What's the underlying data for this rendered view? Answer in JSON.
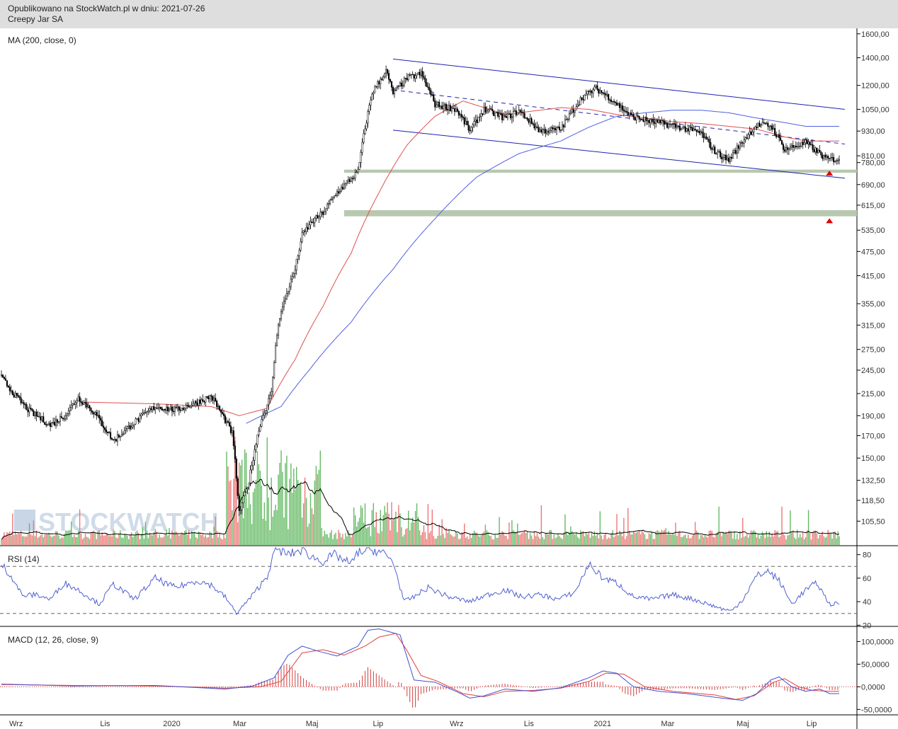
{
  "header": {
    "published": "Opublikowano na StockWatch.pl w dniu: 2021-07-26",
    "instrument": "Creepy Jar SA"
  },
  "watermark": "STOCKWATCH",
  "colors": {
    "ma_red": "#e05050",
    "ma_blue": "#5060e0",
    "channel": "#2020b0",
    "rsi": "#5060d0",
    "support_band": "#b8c8b0",
    "vol_up": "#66bb66",
    "vol_down": "#ee7777",
    "marker": "#e00000"
  },
  "chart_data": [
    {
      "type": "candlestick",
      "panel": "price",
      "indicator_label": "MA (200, close, 0)",
      "y_scale": "log",
      "ylim": [
        92,
        1650
      ],
      "y_ticks": [
        "1600,00",
        "1400,00",
        "1200,00",
        "1050,00",
        "930,00",
        "810,00",
        "780,00",
        "690,00",
        "615,00",
        "535,00",
        "475,00",
        "415,00",
        "355,00",
        "315,00",
        "275,00",
        "245,00",
        "215,00",
        "190,00",
        "170,00",
        "150,00",
        "132,50",
        "118,50",
        "105,50"
      ],
      "x_ticks": [
        "Wrz",
        "Lis",
        "2020",
        "Mar",
        "Maj",
        "Lip",
        "Wrz",
        "Lis",
        "2021",
        "Mar",
        "Maj",
        "Lip"
      ],
      "close_anchors": [
        [
          0,
          235
        ],
        [
          10,
          212
        ],
        [
          20,
          195
        ],
        [
          35,
          180
        ],
        [
          45,
          190
        ],
        [
          55,
          210
        ],
        [
          65,
          196
        ],
        [
          80,
          165
        ],
        [
          95,
          183
        ],
        [
          110,
          200
        ],
        [
          125,
          196
        ],
        [
          140,
          205
        ],
        [
          150,
          212
        ],
        [
          165,
          172
        ],
        [
          170,
          110
        ],
        [
          177,
          132
        ],
        [
          185,
          182
        ],
        [
          193,
          215
        ],
        [
          198,
          320
        ],
        [
          210,
          430
        ],
        [
          215,
          520
        ],
        [
          222,
          560
        ],
        [
          230,
          590
        ],
        [
          240,
          660
        ],
        [
          255,
          740
        ],
        [
          265,
          1150
        ],
        [
          275,
          1300
        ],
        [
          280,
          1150
        ],
        [
          290,
          1250
        ],
        [
          300,
          1280
        ],
        [
          310,
          1080
        ],
        [
          325,
          1050
        ],
        [
          335,
          930
        ],
        [
          345,
          1050
        ],
        [
          360,
          1000
        ],
        [
          370,
          1040
        ],
        [
          385,
          930
        ],
        [
          400,
          940
        ],
        [
          415,
          1120
        ],
        [
          425,
          1180
        ],
        [
          435,
          1120
        ],
        [
          450,
          1010
        ],
        [
          465,
          980
        ],
        [
          480,
          960
        ],
        [
          500,
          920
        ],
        [
          510,
          830
        ],
        [
          520,
          790
        ],
        [
          530,
          880
        ],
        [
          540,
          960
        ],
        [
          550,
          960
        ],
        [
          560,
          840
        ],
        [
          570,
          860
        ],
        [
          575,
          870
        ],
        [
          590,
          795
        ]
      ],
      "ma_red_anchors": [
        [
          60,
          205
        ],
        [
          110,
          203
        ],
        [
          150,
          200
        ],
        [
          170,
          190
        ],
        [
          190,
          198
        ],
        [
          210,
          260
        ],
        [
          230,
          350
        ],
        [
          250,
          470
        ],
        [
          270,
          660
        ],
        [
          290,
          860
        ],
        [
          310,
          1010
        ],
        [
          330,
          1100
        ],
        [
          345,
          1060
        ],
        [
          360,
          1020
        ],
        [
          380,
          1040
        ],
        [
          400,
          1060
        ],
        [
          420,
          1050
        ],
        [
          440,
          1020
        ],
        [
          460,
          1000
        ],
        [
          480,
          980
        ],
        [
          500,
          970
        ],
        [
          520,
          955
        ],
        [
          540,
          940
        ],
        [
          560,
          900
        ],
        [
          575,
          880
        ]
      ],
      "ma_blue_anchors": [
        [
          175,
          182
        ],
        [
          200,
          200
        ],
        [
          220,
          245
        ],
        [
          250,
          320
        ],
        [
          280,
          430
        ],
        [
          310,
          570
        ],
        [
          340,
          720
        ],
        [
          370,
          820
        ],
        [
          400,
          880
        ],
        [
          420,
          950
        ],
        [
          440,
          1010
        ],
        [
          460,
          1030
        ],
        [
          480,
          1045
        ],
        [
          500,
          1045
        ],
        [
          520,
          1030
        ],
        [
          540,
          1000
        ],
        [
          560,
          975
        ],
        [
          575,
          955
        ]
      ],
      "channel_upper": [
        [
          280,
          1390
        ],
        [
          603,
          1050
        ]
      ],
      "channel_lower": [
        [
          280,
          935
        ],
        [
          603,
          715
        ]
      ],
      "trend_dashed": [
        [
          280,
          1170
        ],
        [
          603,
          865
        ]
      ],
      "support_zones": [
        [
          737,
          750
        ],
        [
          578,
          598
        ]
      ],
      "markers": [
        [
          592,
          737
        ],
        [
          592,
          565
        ]
      ]
    },
    {
      "type": "bar",
      "panel": "volume",
      "series": []
    },
    {
      "type": "line",
      "panel": "rsi",
      "indicator_label": "RSI (14)",
      "ylim": [
        19,
        87
      ],
      "y_ticks": [
        "80",
        "60",
        "40",
        "20"
      ],
      "levels": [
        70,
        30
      ],
      "rsi_anchors": [
        [
          0,
          72
        ],
        [
          8,
          60
        ],
        [
          15,
          45
        ],
        [
          25,
          46
        ],
        [
          35,
          42
        ],
        [
          45,
          56
        ],
        [
          55,
          50
        ],
        [
          70,
          38
        ],
        [
          80,
          55
        ],
        [
          95,
          42
        ],
        [
          110,
          60
        ],
        [
          118,
          55
        ],
        [
          125,
          52
        ],
        [
          140,
          58
        ],
        [
          150,
          54
        ],
        [
          160,
          44
        ],
        [
          168,
          30
        ],
        [
          174,
          38
        ],
        [
          180,
          46
        ],
        [
          190,
          62
        ],
        [
          196,
          85
        ],
        [
          205,
          80
        ],
        [
          215,
          84
        ],
        [
          222,
          78
        ],
        [
          230,
          74
        ],
        [
          238,
          80
        ],
        [
          250,
          72
        ],
        [
          255,
          82
        ],
        [
          265,
          84
        ],
        [
          272,
          82
        ],
        [
          280,
          74
        ],
        [
          288,
          40
        ],
        [
          295,
          44
        ],
        [
          305,
          52
        ],
        [
          320,
          44
        ],
        [
          335,
          40
        ],
        [
          348,
          46
        ],
        [
          360,
          50
        ],
        [
          372,
          44
        ],
        [
          385,
          46
        ],
        [
          398,
          42
        ],
        [
          410,
          48
        ],
        [
          420,
          72
        ],
        [
          430,
          60
        ],
        [
          440,
          56
        ],
        [
          452,
          44
        ],
        [
          465,
          42
        ],
        [
          480,
          46
        ],
        [
          495,
          42
        ],
        [
          505,
          38
        ],
        [
          515,
          34
        ],
        [
          522,
          32
        ],
        [
          530,
          42
        ],
        [
          540,
          62
        ],
        [
          548,
          66
        ],
        [
          556,
          58
        ],
        [
          565,
          38
        ],
        [
          575,
          50
        ],
        [
          583,
          56
        ],
        [
          592,
          38
        ]
      ]
    },
    {
      "type": "line",
      "panel": "macd",
      "indicator_label": "MACD (12, 26, close, 9)",
      "ylim": [
        -62,
        132
      ],
      "y_ticks": [
        "100,0000",
        "50,0000",
        "0,0000",
        "-50,0000"
      ],
      "macd_anchors": [
        [
          0,
          6
        ],
        [
          50,
          2
        ],
        [
          110,
          3
        ],
        [
          160,
          -5
        ],
        [
          180,
          2
        ],
        [
          195,
          20
        ],
        [
          205,
          70
        ],
        [
          215,
          90
        ],
        [
          225,
          80
        ],
        [
          240,
          68
        ],
        [
          255,
          90
        ],
        [
          262,
          125
        ],
        [
          270,
          128
        ],
        [
          285,
          115
        ],
        [
          295,
          15
        ],
        [
          310,
          10
        ],
        [
          325,
          -10
        ],
        [
          335,
          -25
        ],
        [
          345,
          -20
        ],
        [
          360,
          -5
        ],
        [
          380,
          -10
        ],
        [
          400,
          -2
        ],
        [
          420,
          20
        ],
        [
          430,
          35
        ],
        [
          440,
          30
        ],
        [
          452,
          0
        ],
        [
          470,
          -10
        ],
        [
          490,
          -15
        ],
        [
          515,
          -25
        ],
        [
          530,
          -30
        ],
        [
          540,
          -15
        ],
        [
          550,
          15
        ],
        [
          556,
          22
        ],
        [
          565,
          0
        ],
        [
          575,
          -10
        ],
        [
          585,
          -5
        ],
        [
          592,
          -15
        ]
      ],
      "signal_anchors": [
        [
          0,
          5
        ],
        [
          50,
          3
        ],
        [
          110,
          2
        ],
        [
          160,
          -3
        ],
        [
          185,
          0
        ],
        [
          200,
          12
        ],
        [
          215,
          75
        ],
        [
          230,
          82
        ],
        [
          245,
          70
        ],
        [
          260,
          90
        ],
        [
          270,
          110
        ],
        [
          282,
          118
        ],
        [
          290,
          80
        ],
        [
          300,
          25
        ],
        [
          312,
          12
        ],
        [
          330,
          -15
        ],
        [
          345,
          -22
        ],
        [
          360,
          -10
        ],
        [
          380,
          -8
        ],
        [
          400,
          -3
        ],
        [
          420,
          12
        ],
        [
          432,
          30
        ],
        [
          445,
          28
        ],
        [
          460,
          0
        ],
        [
          480,
          -10
        ],
        [
          510,
          -18
        ],
        [
          525,
          -28
        ],
        [
          538,
          -20
        ],
        [
          552,
          10
        ],
        [
          560,
          18
        ],
        [
          570,
          0
        ],
        [
          580,
          -8
        ],
        [
          592,
          -10
        ]
      ]
    }
  ]
}
